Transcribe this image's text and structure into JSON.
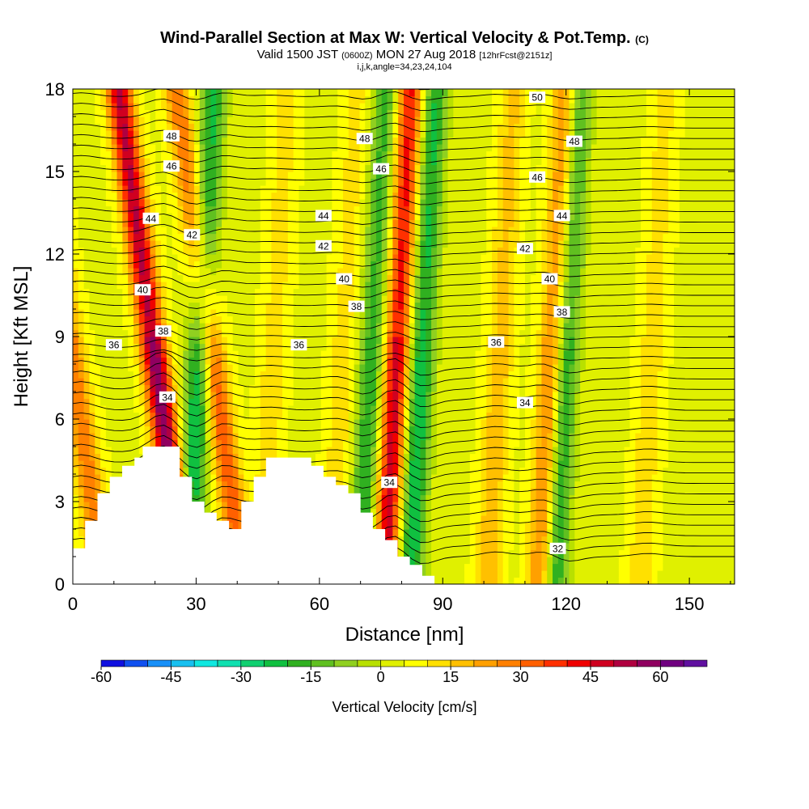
{
  "header": {
    "title": "Wind-Parallel Section at Max W: Vertical Velocity & Pot.Temp.",
    "copyright": "(C)",
    "subtitle_main_a": "Valid 1500 JST",
    "subtitle_small_a": "(0600Z)",
    "subtitle_main_b": "MON 27 Aug 2018",
    "subtitle_small_b": "[12hrFcst@2151z]",
    "info": "i,j,k,angle=34,23,24,104"
  },
  "chart_data": {
    "type": "heatmap",
    "title": "Wind-Parallel Section at Max W: Vertical Velocity & Pot.Temp.",
    "xlabel": "Distance [nm]",
    "ylabel": "Height [Kft MSL]",
    "xlim": [
      0,
      161
    ],
    "ylim": [
      0,
      18
    ],
    "x_ticks": [
      "0",
      "30",
      "60",
      "90",
      "120",
      "150"
    ],
    "x_tick_values": [
      0,
      30,
      60,
      90,
      120,
      150
    ],
    "y_ticks": [
      "0",
      "3",
      "6",
      "9",
      "12",
      "15",
      "18"
    ],
    "y_tick_values": [
      0,
      3,
      6,
      9,
      12,
      15,
      18
    ],
    "colorbar": {
      "label": "Vertical Velocity [cm/s]",
      "range": [
        -60,
        70
      ],
      "step": 5,
      "tick_labels": [
        "-60",
        "-45",
        "-30",
        "-15",
        "0",
        "15",
        "30",
        "45",
        "60"
      ],
      "tick_values": [
        -60,
        -45,
        -30,
        -15,
        0,
        15,
        30,
        45,
        60
      ],
      "colors": [
        "#1010e0",
        "#1050f0",
        "#1890f8",
        "#18c0f0",
        "#10e8e0",
        "#10e0b0",
        "#10d070",
        "#10c040",
        "#30b020",
        "#60c020",
        "#90d020",
        "#b8e000",
        "#e0f000",
        "#ffff00",
        "#ffe000",
        "#ffc000",
        "#ffa000",
        "#ff8000",
        "#ff6000",
        "#ff3000",
        "#f00000",
        "#d00020",
        "#b00040",
        "#900060",
        "#700080",
        "#6010a0"
      ]
    },
    "vertical_velocity_features": [
      {
        "x": 2,
        "w": 25,
        "note": "downdraft column"
      },
      {
        "x": 22,
        "w": 55,
        "note": "updraft column"
      },
      {
        "x": 30,
        "w": -30,
        "note": "downdraft column"
      },
      {
        "x": 36,
        "w": 30,
        "note": "updraft column"
      },
      {
        "x": 48,
        "w": 10,
        "note": "weak updraft"
      },
      {
        "x": 65,
        "w": 10,
        "note": "weak updraft"
      },
      {
        "x": 72,
        "w": -25,
        "note": "downdraft column"
      },
      {
        "x": 78,
        "w": 45,
        "note": "updraft column"
      },
      {
        "x": 84,
        "w": -30,
        "note": "downdraft column"
      },
      {
        "x": 103,
        "w": 15,
        "note": "broad updraft"
      },
      {
        "x": 116,
        "w": 30,
        "note": "updraft column"
      },
      {
        "x": 119,
        "w": -30,
        "note": "downdraft column"
      },
      {
        "x": 140,
        "w": 10,
        "note": "weak updraft"
      }
    ],
    "potential_temperature_labels": [
      {
        "text": "48",
        "x": 24,
        "y": 16.3
      },
      {
        "text": "46",
        "x": 24,
        "y": 15.2
      },
      {
        "text": "44",
        "x": 19,
        "y": 13.3
      },
      {
        "text": "42",
        "x": 29,
        "y": 12.7
      },
      {
        "text": "40",
        "x": 17,
        "y": 10.7
      },
      {
        "text": "38",
        "x": 22,
        "y": 9.2
      },
      {
        "text": "36",
        "x": 10,
        "y": 8.7
      },
      {
        "text": "34",
        "x": 23,
        "y": 6.8
      },
      {
        "text": "48",
        "x": 71,
        "y": 16.2
      },
      {
        "text": "46",
        "x": 75,
        "y": 15.1
      },
      {
        "text": "44",
        "x": 61,
        "y": 13.4
      },
      {
        "text": "42",
        "x": 61,
        "y": 12.3
      },
      {
        "text": "40",
        "x": 66,
        "y": 11.1
      },
      {
        "text": "38",
        "x": 69,
        "y": 10.1
      },
      {
        "text": "36",
        "x": 55,
        "y": 8.7
      },
      {
        "text": "34",
        "x": 77,
        "y": 3.7
      },
      {
        "text": "50",
        "x": 113,
        "y": 17.7
      },
      {
        "text": "48",
        "x": 122,
        "y": 16.1
      },
      {
        "text": "46",
        "x": 113,
        "y": 14.8
      },
      {
        "text": "44",
        "x": 119,
        "y": 13.4
      },
      {
        "text": "42",
        "x": 110,
        "y": 12.2
      },
      {
        "text": "40",
        "x": 116,
        "y": 11.1
      },
      {
        "text": "38",
        "x": 119,
        "y": 9.9
      },
      {
        "text": "36",
        "x": 103,
        "y": 8.8
      },
      {
        "text": "34",
        "x": 110,
        "y": 6.6
      },
      {
        "text": "32",
        "x": 118,
        "y": 1.3
      }
    ],
    "terrain": [
      [
        0,
        1.3
      ],
      [
        3,
        1.3
      ],
      [
        3,
        2.3
      ],
      [
        6,
        2.3
      ],
      [
        6,
        3.3
      ],
      [
        9,
        3.3
      ],
      [
        9,
        3.9
      ],
      [
        12,
        3.9
      ],
      [
        12,
        4.3
      ],
      [
        15,
        4.3
      ],
      [
        15,
        4.6
      ],
      [
        17,
        4.6
      ],
      [
        17,
        5.0
      ],
      [
        26,
        5.0
      ],
      [
        26,
        3.9
      ],
      [
        29,
        3.9
      ],
      [
        29,
        3.0
      ],
      [
        32,
        3.0
      ],
      [
        32,
        2.6
      ],
      [
        35,
        2.6
      ],
      [
        35,
        2.3
      ],
      [
        38,
        2.3
      ],
      [
        38,
        2.0
      ],
      [
        41,
        2.0
      ],
      [
        41,
        3.0
      ],
      [
        44,
        3.0
      ],
      [
        44,
        3.9
      ],
      [
        47,
        3.9
      ],
      [
        47,
        4.6
      ],
      [
        58,
        4.6
      ],
      [
        58,
        4.3
      ],
      [
        61,
        4.3
      ],
      [
        61,
        3.9
      ],
      [
        64,
        3.9
      ],
      [
        64,
        3.6
      ],
      [
        67,
        3.6
      ],
      [
        67,
        3.3
      ],
      [
        70,
        3.3
      ],
      [
        70,
        2.6
      ],
      [
        73,
        2.6
      ],
      [
        73,
        2.0
      ],
      [
        76,
        2.0
      ],
      [
        76,
        1.6
      ],
      [
        79,
        1.6
      ],
      [
        79,
        1.0
      ],
      [
        82,
        1.0
      ],
      [
        82,
        0.7
      ],
      [
        85,
        0.7
      ],
      [
        85,
        0.3
      ],
      [
        88,
        0.3
      ],
      [
        88,
        0
      ]
    ]
  },
  "colorbar_label": "Vertical Velocity [cm/s]"
}
